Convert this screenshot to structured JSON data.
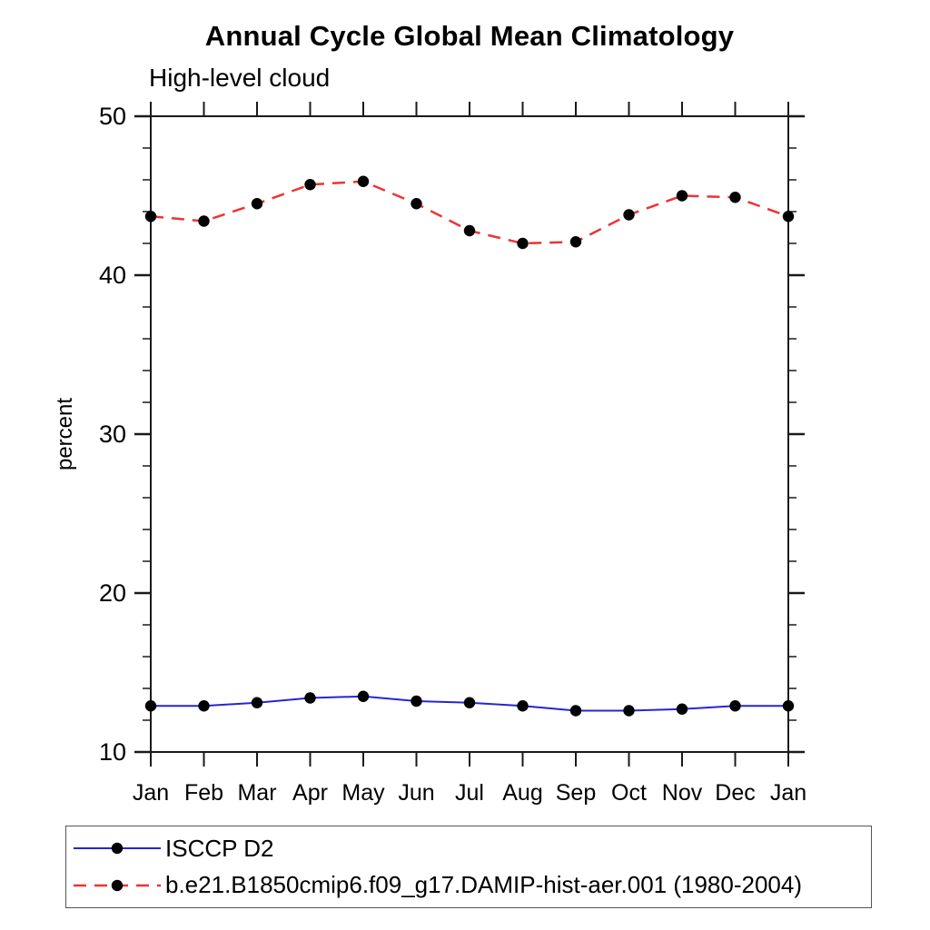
{
  "chart_data": {
    "type": "line",
    "title": "Annual Cycle Global Mean Climatology",
    "subtitle": "High-level cloud",
    "ylabel": "percent",
    "xlabel": "",
    "categories": [
      "Jan",
      "Feb",
      "Mar",
      "Apr",
      "May",
      "Jun",
      "Jul",
      "Aug",
      "Sep",
      "Oct",
      "Nov",
      "Dec",
      "Jan"
    ],
    "ylim": [
      10,
      50
    ],
    "yticks": [
      10,
      20,
      30,
      40,
      50
    ],
    "minor_tick_step": 2,
    "grid": false,
    "legend_position": "bottom-left-box",
    "frame": "boxed-axes-outward-ticks",
    "axis_color": "#1a1a1a",
    "marker": "filled-circle",
    "marker_color": "#000000",
    "series": [
      {
        "name": "ISCCP D2",
        "color": "#2525d6",
        "line_style": "solid",
        "values": [
          12.9,
          12.9,
          13.1,
          13.4,
          13.5,
          13.2,
          13.1,
          12.9,
          12.6,
          12.6,
          12.7,
          12.9,
          12.9
        ]
      },
      {
        "name": "b.e21.B1850cmip6.f09_g17.DAMIP-hist-aer.001 (1980-2004)",
        "color": "#ee3333",
        "line_style": "dashed",
        "values": [
          43.7,
          43.4,
          44.5,
          45.7,
          45.9,
          44.5,
          42.8,
          42.0,
          42.1,
          43.8,
          45.0,
          44.9,
          43.7
        ]
      }
    ]
  }
}
